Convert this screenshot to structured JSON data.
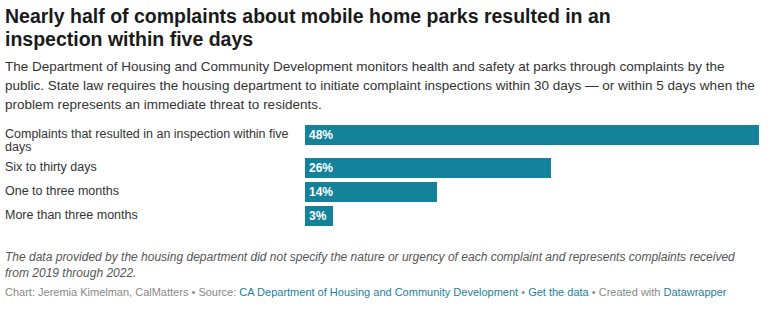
{
  "chart_data": {
    "type": "bar",
    "orientation": "horizontal",
    "title": "Nearly half of complaints about mobile home parks resulted in an inspection within five days",
    "subtitle": "The Department of Housing and Community Development monitors health and safety at parks through complaints by the public. State law requires the housing department to initiate complaint inspections within 30 days — or within 5 days when the problem represents an immediate threat to residents.",
    "categories": [
      "Complaints that resulted in an inspection within five days",
      "Six to thirty days",
      "One to three months",
      "More than three months"
    ],
    "values": [
      48,
      26,
      14,
      3
    ],
    "value_labels": [
      "48%",
      "26%",
      "14%",
      "3%"
    ],
    "color": "#13829a",
    "data_labels": true,
    "grid": false,
    "notes": "The data provided by the housing department did not specify the nature or urgency of each complaint and represents complaints received from 2019 through 2022.",
    "credit": "Chart: Jeremia Kimelman, CalMatters",
    "separator": "•",
    "source_label": "Source:",
    "source": "CA Department of Housing and Community Development",
    "get_data": "Get the data",
    "created_with": "Created with",
    "tool": "Datawrapper"
  }
}
